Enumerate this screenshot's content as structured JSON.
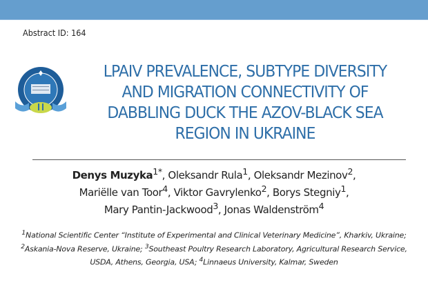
{
  "header": {
    "accent_color": "#659ece"
  },
  "abstract_id": "Abstract ID: 164",
  "logo": {
    "name": "institute-emblem-logo"
  },
  "title": {
    "lines": [
      "LPAIV PREVALENCE, SUBTYPE DIVERSITY",
      "AND MIGRATION CONNECTIVITY OF",
      "DABBLING DUCK THE AZOV-BLACK SEA",
      "REGION IN UKRAINE"
    ],
    "color": "#2d6ea8"
  },
  "authors": [
    {
      "name": "Denys Muzyka",
      "sup": "1*"
    },
    {
      "name": "Oleksandr Rula",
      "sup": "1"
    },
    {
      "name": "Oleksandr Mezinov",
      "sup": "2"
    },
    {
      "name": "Mariëlle van Toor",
      "sup": "4"
    },
    {
      "name": "Viktor Gavrylenko",
      "sup": "2"
    },
    {
      "name": "Borys Stegniy",
      "sup": "1"
    },
    {
      "name": "Mary Pantin-Jackwood",
      "sup": "3"
    },
    {
      "name": "Jonas Waldenström",
      "sup": "4"
    }
  ],
  "affiliations": [
    {
      "sup": "1",
      "text": "National Scientific Center “Institute of Experimental and Clinical Veterinary Medicine”, Kharkiv, Ukraine; "
    },
    {
      "sup": "2",
      "text": "Askania-Nova Reserve, Ukraine;  "
    },
    {
      "sup": "3",
      "text": "Southeast Poultry Research Laboratory, Agricultural Research Service, USDA,  Athens, Georgia, USA; "
    },
    {
      "sup": "4",
      "text": "Linnaeus University, Kalmar, Sweden"
    }
  ]
}
